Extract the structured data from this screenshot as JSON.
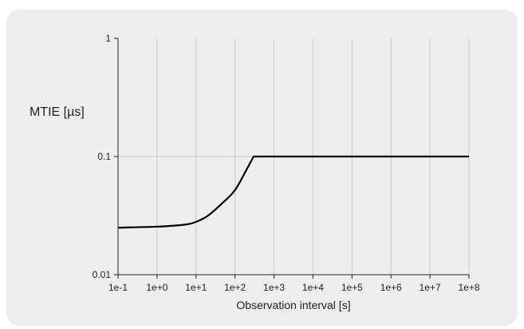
{
  "chart_data": {
    "type": "line",
    "title": "",
    "xlabel": "Observation interval [s]",
    "ylabel": "MTIE [µs]",
    "x_scale": "log",
    "y_scale": "log",
    "xlim": [
      0.1,
      100000000
    ],
    "ylim": [
      0.01,
      1
    ],
    "x_ticks": [
      0.1,
      1,
      10,
      100,
      1000,
      10000,
      100000,
      1000000,
      10000000,
      100000000
    ],
    "x_tick_labels": [
      "1e-1",
      "1e+0",
      "1e+1",
      "1e+2",
      "1e+3",
      "1e+4",
      "1e+5",
      "1e+6",
      "1e+7",
      "1e+8"
    ],
    "y_ticks": [
      0.01,
      0.1,
      1
    ],
    "y_tick_labels": [
      "0.01",
      "0.1",
      "1"
    ],
    "grid": true,
    "legend": "none",
    "series": [
      {
        "color": "#000000",
        "x": [
          0.1,
          1,
          5,
          10,
          20,
          50,
          100,
          200,
          300,
          1000,
          100000,
          100000000
        ],
        "y": [
          0.025,
          0.0255,
          0.0265,
          0.028,
          0.0315,
          0.041,
          0.052,
          0.078,
          0.1,
          0.1,
          0.1,
          0.1
        ]
      }
    ]
  }
}
